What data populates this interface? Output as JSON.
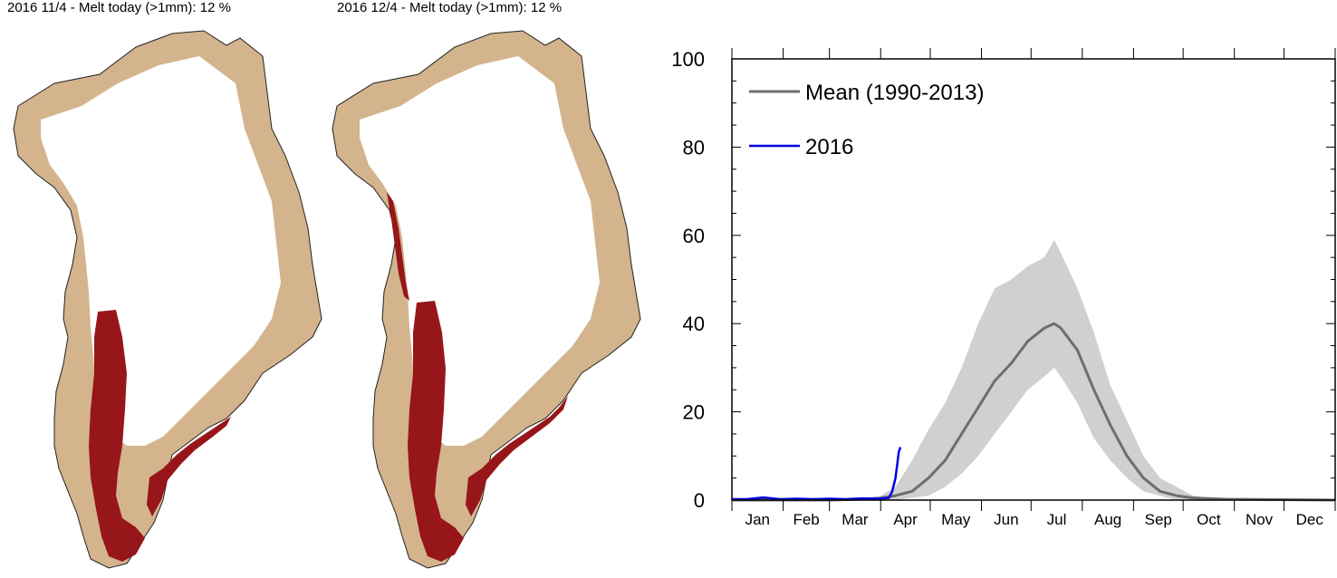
{
  "maps": [
    {
      "title": "2016 11/4  -  Melt today (>1mm): 12 %"
    },
    {
      "title": "2016 12/4  -  Melt today (>1mm): 12 %"
    }
  ],
  "colors": {
    "land": "#d3b48c",
    "melt": "#96161a",
    "ice": "#ffffff",
    "coast": "#222222",
    "mean_line": "#6e6e6e",
    "band": "#d0d0d0",
    "series_2016": "#0000e6"
  },
  "chart_data": {
    "type": "line",
    "title": "",
    "xlabel": "",
    "ylabel": "",
    "ylim": [
      0,
      100
    ],
    "xlim": [
      1,
      366
    ],
    "month_labels": [
      "Jan",
      "Feb",
      "Mar",
      "Apr",
      "May",
      "Jun",
      "Jul",
      "Aug",
      "Sep",
      "Oct",
      "Nov",
      "Dec"
    ],
    "yticks": [
      0,
      20,
      40,
      60,
      80,
      100
    ],
    "legend": {
      "placement": "top-left",
      "entries": [
        "Mean (1990-2013)",
        "2016"
      ]
    },
    "series": [
      {
        "name": "Mean (1990-2013)",
        "color": "#6e6e6e",
        "x": [
          1,
          60,
          80,
          91,
          100,
          110,
          120,
          130,
          140,
          150,
          160,
          170,
          180,
          190,
          196,
          200,
          210,
          220,
          230,
          240,
          250,
          260,
          270,
          280,
          300,
          366
        ],
        "y": [
          0,
          0,
          0.2,
          0.5,
          1,
          2,
          5,
          9,
          15,
          21,
          27,
          31,
          36,
          39,
          40,
          39,
          34,
          25,
          17,
          10,
          5,
          2,
          1,
          0.5,
          0.2,
          0
        ]
      },
      {
        "name": "2016",
        "color": "#0000e6",
        "x": [
          1,
          10,
          20,
          30,
          40,
          50,
          60,
          70,
          80,
          90,
          96,
          98,
          100,
          102,
          103
        ],
        "y": [
          0.2,
          0.2,
          0.6,
          0.2,
          0.3,
          0.2,
          0.3,
          0.2,
          0.4,
          0.3,
          0.5,
          2,
          5,
          11,
          12
        ]
      }
    ],
    "band": {
      "x": [
        91,
        100,
        110,
        120,
        130,
        140,
        150,
        160,
        170,
        180,
        190,
        196,
        200,
        210,
        220,
        230,
        240,
        250,
        260,
        270,
        280,
        300
      ],
      "lower": [
        0,
        0,
        0.5,
        1,
        3,
        6,
        10,
        15,
        20,
        25,
        28,
        30,
        28,
        22,
        14,
        9,
        5,
        2,
        1,
        0,
        0,
        0
      ],
      "upper": [
        1,
        3,
        9,
        16,
        22,
        30,
        40,
        48,
        50,
        53,
        55,
        59,
        56,
        48,
        38,
        26,
        18,
        10,
        5,
        3,
        1,
        0
      ]
    }
  }
}
